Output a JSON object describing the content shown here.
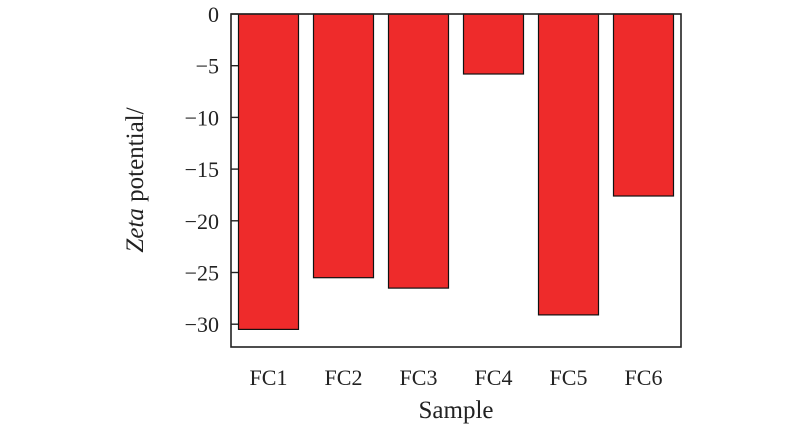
{
  "chart_data": {
    "type": "bar",
    "categories": [
      "FC1",
      "FC2",
      "FC3",
      "FC4",
      "FC5",
      "FC6"
    ],
    "values": [
      -30.5,
      -25.5,
      -26.5,
      -5.8,
      -29.1,
      -17.6
    ],
    "xlabel": "Sample",
    "ylabel_italic": "Zeta",
    "ylabel_rest": " potential/",
    "ylim": [
      -32.2,
      0
    ],
    "yticks": [
      0,
      -5,
      -10,
      -15,
      -20,
      -25,
      -30
    ],
    "ytick_labels": [
      "0",
      "−5",
      "−10",
      "−15",
      "−20",
      "−25",
      "−30"
    ],
    "bar_color": "#ee2b2b",
    "bar_edge_color": "#111111",
    "grid": false,
    "legend": "none"
  }
}
